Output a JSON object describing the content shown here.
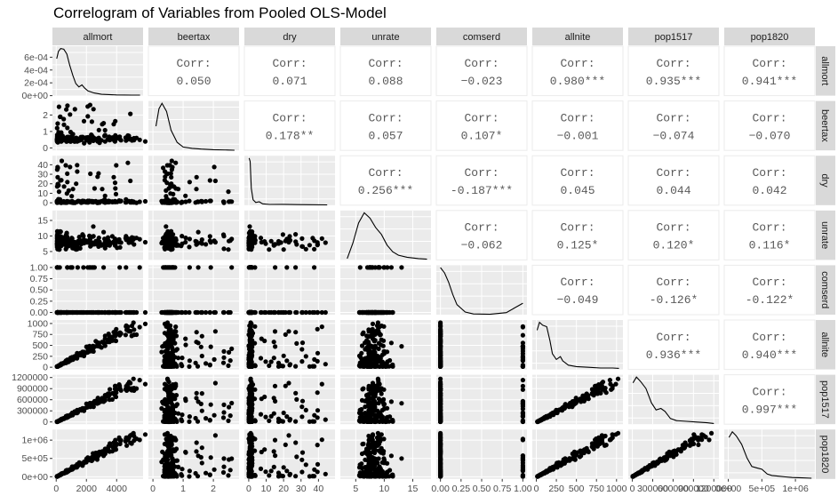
{
  "chart_data": {
    "type": "scatter",
    "title": "Correlogram of Variables from Pooled OLS-Model",
    "variables": [
      "allmort",
      "beertax",
      "dry",
      "unrate",
      "comserd",
      "allnite",
      "pop1517",
      "pop1820"
    ],
    "corr_label": "Corr:",
    "correlations": [
      [
        "",
        "0.050",
        "0.071",
        "0.088",
        "-0.023",
        "0.980***",
        "0.935***",
        "0.941***"
      ],
      [
        "",
        "",
        "0.178**",
        "0.057",
        "0.107*",
        "-0.001",
        "-0.074",
        "-0.070"
      ],
      [
        "",
        "",
        "",
        "0.256***",
        "-0.187***",
        "0.045",
        "0.044",
        "0.042"
      ],
      [
        "",
        "",
        "",
        "",
        "-0.062",
        "0.125*",
        "0.120*",
        "0.116*"
      ],
      [
        "",
        "",
        "",
        "",
        "",
        "-0.049",
        "-0.126*",
        "-0.122*"
      ],
      [
        "",
        "",
        "",
        "",
        "",
        "",
        "0.936***",
        "0.940***"
      ],
      [
        "",
        "",
        "",
        "",
        "",
        "",
        "",
        "0.997***"
      ],
      [
        "",
        "",
        "",
        "",
        "",
        "",
        "",
        ""
      ]
    ],
    "x_ticks": [
      [
        "0",
        "2000",
        "4000"
      ],
      [
        "0",
        "1",
        "2"
      ],
      [
        "0",
        "10",
        "20",
        "30",
        "40"
      ],
      [
        "5",
        "10",
        "15"
      ],
      [
        "0.00",
        "0.25",
        "0.50",
        "0.75",
        "1.00"
      ],
      [
        "0",
        "250",
        "500",
        "750",
        "1000"
      ],
      [
        "0",
        "300000",
        "600000",
        "900000",
        "1200000"
      ],
      [
        "0e+00",
        "5e+05",
        "1e+06"
      ]
    ],
    "y_ticks": [
      [
        "0e+00",
        "2e-04",
        "4e-04",
        "6e-04"
      ],
      [
        "0",
        "1",
        "2"
      ],
      [
        "0",
        "10",
        "20",
        "30",
        "40"
      ],
      [
        "5",
        "10",
        "15"
      ],
      [
        "0.00",
        "0.25",
        "0.50",
        "0.75",
        "1.00"
      ],
      [
        "0",
        "250",
        "500",
        "750",
        "1000"
      ],
      [
        "0",
        "300000",
        "600000",
        "900000",
        "1200000"
      ],
      [
        "0e+00",
        "5e+05",
        "1e+06"
      ]
    ],
    "ranges": [
      [
        -250,
        5750
      ],
      [
        -0.15,
        2.85
      ],
      [
        -2.5,
        49.5
      ],
      [
        2.3,
        18.2
      ],
      [
        -0.05,
        1.05
      ],
      [
        -50,
        1080
      ],
      [
        -60000,
        1275000
      ],
      [
        -60000,
        1290000
      ]
    ],
    "ytick_values": [
      [
        0,
        0.0002,
        0.0004,
        0.0006
      ],
      [
        0,
        1,
        2
      ],
      [
        0,
        10,
        20,
        30,
        40
      ],
      [
        5,
        10,
        15
      ],
      [
        0,
        0.25,
        0.5,
        0.75,
        1
      ],
      [
        0,
        250,
        500,
        750,
        1000
      ],
      [
        0,
        300000,
        600000,
        900000,
        1200000
      ],
      [
        0,
        500000,
        1000000
      ]
    ],
    "xtick_values": [
      [
        0,
        2000,
        4000
      ],
      [
        0,
        1,
        2
      ],
      [
        0,
        10,
        20,
        30,
        40
      ],
      [
        5,
        10,
        15
      ],
      [
        0,
        0.25,
        0.5,
        0.75,
        1
      ],
      [
        0,
        250,
        500,
        750,
        1000
      ],
      [
        0,
        300000,
        600000,
        900000,
        1200000
      ],
      [
        0,
        500000,
        1000000
      ]
    ],
    "diag_density_range": [
      0,
      0.00072
    ],
    "densities": [
      [
        [
          30,
          0.00055
        ],
        [
          150,
          0.00066
        ],
        [
          300,
          0.0007
        ],
        [
          500,
          0.00069
        ],
        [
          700,
          0.00062
        ],
        [
          900,
          0.00045
        ],
        [
          1100,
          0.0003
        ],
        [
          1300,
          0.00018
        ],
        [
          1500,
          0.00013
        ],
        [
          1700,
          0.00016
        ],
        [
          1900,
          0.00011
        ],
        [
          2100,
          7e-05
        ],
        [
          2500,
          4e-05
        ],
        [
          3000,
          2e-05
        ],
        [
          4000,
          1e-05
        ],
        [
          5000,
          8e-06
        ],
        [
          5550,
          8e-06
        ]
      ],
      [
        [
          0.1,
          0.36
        ],
        [
          0.2,
          0.62
        ],
        [
          0.3,
          0.7
        ],
        [
          0.45,
          0.58
        ],
        [
          0.6,
          0.3
        ],
        [
          0.8,
          0.12
        ],
        [
          1.0,
          0.05
        ],
        [
          1.3,
          0.03
        ],
        [
          1.6,
          0.02
        ],
        [
          2.0,
          0.01
        ],
        [
          2.5,
          0.005
        ],
        [
          2.7,
          0.003
        ]
      ],
      [
        [
          0.2,
          0.7
        ],
        [
          0.8,
          0.65
        ],
        [
          1.5,
          0.25
        ],
        [
          2.5,
          0.08
        ],
        [
          4,
          0.04
        ],
        [
          6,
          0.05
        ],
        [
          8,
          0.02
        ],
        [
          12,
          0.01
        ],
        [
          20,
          0.012
        ],
        [
          28,
          0.008
        ],
        [
          35,
          0.006
        ],
        [
          45,
          0.004
        ]
      ],
      [
        [
          3.5,
          0.02
        ],
        [
          4.5,
          0.25
        ],
        [
          5.5,
          0.55
        ],
        [
          6.5,
          0.7
        ],
        [
          7.5,
          0.62
        ],
        [
          8.5,
          0.48
        ],
        [
          9.5,
          0.38
        ],
        [
          10.5,
          0.22
        ],
        [
          11.5,
          0.12
        ],
        [
          12.5,
          0.07
        ],
        [
          14,
          0.04
        ],
        [
          16,
          0.02
        ],
        [
          17.5,
          0.01
        ]
      ],
      [
        [
          0,
          0.7
        ],
        [
          0.05,
          0.62
        ],
        [
          0.1,
          0.48
        ],
        [
          0.15,
          0.3
        ],
        [
          0.2,
          0.15
        ],
        [
          0.3,
          0.04
        ],
        [
          0.4,
          0.01
        ],
        [
          0.6,
          0.005
        ],
        [
          0.8,
          0.03
        ],
        [
          0.9,
          0.1
        ],
        [
          1.0,
          0.17
        ]
      ],
      [
        [
          10,
          0.55
        ],
        [
          40,
          0.66
        ],
        [
          80,
          0.62
        ],
        [
          130,
          0.6
        ],
        [
          170,
          0.4
        ],
        [
          200,
          0.22
        ],
        [
          250,
          0.14
        ],
        [
          300,
          0.18
        ],
        [
          330,
          0.12
        ],
        [
          400,
          0.06
        ],
        [
          500,
          0.04
        ],
        [
          650,
          0.03
        ],
        [
          800,
          0.02
        ],
        [
          950,
          0.02
        ],
        [
          1030,
          0.015
        ]
      ],
      [
        [
          10000,
          0.58
        ],
        [
          60000,
          0.66
        ],
        [
          120000,
          0.6
        ],
        [
          200000,
          0.5
        ],
        [
          280000,
          0.3
        ],
        [
          350000,
          0.2
        ],
        [
          420000,
          0.22
        ],
        [
          480000,
          0.18
        ],
        [
          560000,
          0.08
        ],
        [
          650000,
          0.05
        ],
        [
          800000,
          0.04
        ],
        [
          950000,
          0.03
        ],
        [
          1100000,
          0.02
        ],
        [
          1200000,
          0.01
        ]
      ],
      [
        [
          10000,
          0.6
        ],
        [
          60000,
          0.68
        ],
        [
          120000,
          0.62
        ],
        [
          200000,
          0.5
        ],
        [
          280000,
          0.3
        ],
        [
          350000,
          0.18
        ],
        [
          420000,
          0.16
        ],
        [
          500000,
          0.14
        ],
        [
          580000,
          0.07
        ],
        [
          650000,
          0.05
        ],
        [
          750000,
          0.04
        ],
        [
          850000,
          0.03
        ],
        [
          950000,
          0.02
        ],
        [
          1100000,
          0.015
        ],
        [
          1240000,
          0.01
        ]
      ]
    ],
    "grid": true,
    "legend": "none"
  },
  "colors": {
    "panel_background": "#ebebeb",
    "grid_major": "#ffffff",
    "strip_background": "#d9d9d9",
    "points": "#000000",
    "corr_text": "#595959",
    "tick_text": "#4d4d4d"
  }
}
